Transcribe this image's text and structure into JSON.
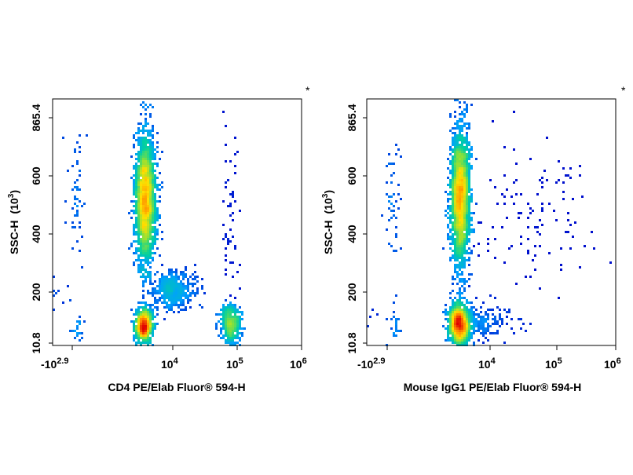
{
  "chart_data": [
    {
      "type": "scatter",
      "subtype": "flow-cytometry-density-plot",
      "xlabel": "CD4 PE/Elab Fluor® 594-H",
      "ylabel": "SSC-H",
      "ylabel_unit": "(10",
      "ylabel_unit_exp": "3",
      "ylabel_unit_close": ")",
      "corner_mark": "*",
      "x_ticks": [
        {
          "base": "-10",
          "exp": "2.9",
          "value": -794
        },
        {
          "base": "10",
          "exp": "4",
          "value": 10000
        },
        {
          "base": "10",
          "exp": "5",
          "value": 100000
        },
        {
          "base": "10",
          "exp": "6",
          "value": 1000000
        }
      ],
      "y_ticks": [
        "10.8",
        "200",
        "400",
        "600",
        "865.4"
      ],
      "y_tick_values": [
        10.8,
        200,
        400,
        600,
        865.4
      ],
      "xlim": [
        -794,
        1000000
      ],
      "ylim": [
        10.8,
        865.4
      ],
      "x_scale": "biexponential",
      "colormap": [
        "#0000c8",
        "#00a0ff",
        "#00d0a0",
        "#80e040",
        "#ffe000",
        "#ff8000",
        "#e00000"
      ],
      "populations": [
        {
          "x": 2000,
          "y": 520,
          "sx": 0.12,
          "sy": 110,
          "n": 2600,
          "peak": 0.9
        },
        {
          "x": 1800,
          "y": 80,
          "sx": 0.1,
          "sy": 28,
          "n": 900,
          "peak": 1.0
        },
        {
          "x": 9000,
          "y": 200,
          "sx": 0.22,
          "sy": 32,
          "n": 450,
          "peak": 0.45
        },
        {
          "x": 80000,
          "y": 85,
          "sx": 0.07,
          "sy": 32,
          "n": 420,
          "peak": 0.95
        },
        {
          "x": 80000,
          "y": 400,
          "sx": 0.06,
          "sy": 250,
          "n": 70,
          "peak": 0.08
        }
      ]
    },
    {
      "type": "scatter",
      "subtype": "flow-cytometry-density-plot",
      "xlabel": "Mouse IgG1 PE/Elab Fluor® 594-H",
      "ylabel": "SSC-H",
      "ylabel_unit": "(10",
      "ylabel_unit_exp": "3",
      "ylabel_unit_close": ")",
      "corner_mark": "*",
      "x_ticks": [
        {
          "base": "-10",
          "exp": "2.9",
          "value": -794
        },
        {
          "base": "10",
          "exp": "4",
          "value": 10000
        },
        {
          "base": "10",
          "exp": "5",
          "value": 100000
        },
        {
          "base": "10",
          "exp": "6",
          "value": 1000000
        }
      ],
      "y_ticks": [
        "10.8",
        "200",
        "400",
        "600",
        "865.4"
      ],
      "y_tick_values": [
        10.8,
        200,
        400,
        600,
        865.4
      ],
      "xlim": [
        -794,
        1000000
      ],
      "ylim": [
        10.8,
        865.4
      ],
      "x_scale": "biexponential",
      "colormap": [
        "#0000c8",
        "#00a0ff",
        "#00d0a0",
        "#80e040",
        "#ffe000",
        "#ff8000",
        "#e00000"
      ],
      "populations": [
        {
          "x": 1800,
          "y": 520,
          "sx": 0.11,
          "sy": 115,
          "n": 2600,
          "peak": 0.9
        },
        {
          "x": 1700,
          "y": 85,
          "sx": 0.12,
          "sy": 35,
          "n": 1300,
          "peak": 1.0
        },
        {
          "x": 5000,
          "y": 95,
          "sx": 0.35,
          "sy": 30,
          "n": 260,
          "peak": 0.3
        },
        {
          "x": 40000,
          "y": 450,
          "sx": 0.45,
          "sy": 140,
          "n": 120,
          "peak": 0.05
        }
      ]
    }
  ]
}
